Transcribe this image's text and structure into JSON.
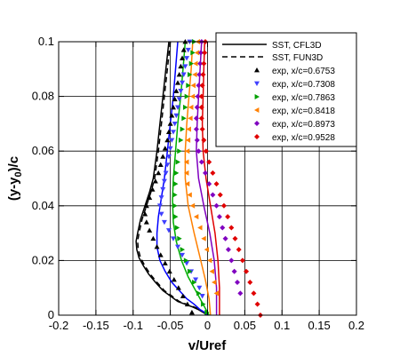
{
  "chart_data": {
    "type": "scatter",
    "title": "",
    "xlabel": "v/Uref",
    "ylabel_main": "(y-y",
    "ylabel_sub": "0",
    "ylabel_tail": ")/c",
    "xlim": [
      -0.2,
      0.2
    ],
    "ylim": [
      0,
      0.1
    ],
    "x_ticks": [
      -0.2,
      -0.15,
      -0.1,
      -0.05,
      0,
      0.05,
      0.1,
      0.15,
      0.2
    ],
    "x_tick_labels": [
      "-0.2",
      "-0.15",
      "-0.1",
      "-0.05",
      "0",
      "0.05",
      "0.1",
      "0.15",
      "0.2"
    ],
    "y_ticks": [
      0,
      0.02,
      0.04,
      0.06,
      0.08,
      0.1
    ],
    "y_tick_labels": [
      "0",
      "0.02",
      "0.04",
      "0.06",
      "0.08",
      "0.1"
    ],
    "grid": true,
    "legend_position": "top-right",
    "lines": [
      {
        "name": "SST, CFL3D",
        "style": "solid",
        "color": "#000000",
        "x": [
          -0.052,
          -0.056,
          -0.06,
          -0.064,
          -0.068,
          -0.073,
          -0.078,
          -0.084,
          -0.09,
          -0.094,
          -0.096,
          -0.095,
          -0.092,
          -0.086,
          -0.079,
          -0.07,
          -0.06,
          -0.05,
          -0.04,
          -0.03,
          -0.02,
          -0.012,
          -0.006,
          0.0
        ],
        "y": [
          0.1,
          0.09,
          0.08,
          0.07,
          0.06,
          0.05,
          0.045,
          0.04,
          0.035,
          0.03,
          0.027,
          0.024,
          0.021,
          0.018,
          0.015,
          0.012,
          0.009,
          0.007,
          0.005,
          0.004,
          0.003,
          0.002,
          0.001,
          0.0
        ]
      },
      {
        "name": "SST, FUN3D",
        "style": "dashed",
        "color": "#000000",
        "x": [
          -0.05,
          -0.054,
          -0.058,
          -0.062,
          -0.066,
          -0.071,
          -0.076,
          -0.082,
          -0.088,
          -0.092,
          -0.094,
          -0.093,
          -0.09,
          -0.084,
          -0.077,
          -0.068,
          -0.058,
          -0.048,
          -0.038,
          -0.028,
          -0.018,
          -0.01,
          -0.004,
          0.002
        ],
        "y": [
          0.1,
          0.09,
          0.08,
          0.07,
          0.06,
          0.05,
          0.045,
          0.04,
          0.035,
          0.03,
          0.027,
          0.024,
          0.021,
          0.018,
          0.015,
          0.012,
          0.009,
          0.007,
          0.005,
          0.004,
          0.003,
          0.002,
          0.001,
          0.0
        ]
      },
      {
        "name": "",
        "style": "solid",
        "color": "#0000ff",
        "x": [
          -0.04,
          -0.043,
          -0.046,
          -0.05,
          -0.054,
          -0.058,
          -0.062,
          -0.066,
          -0.068,
          -0.068,
          -0.064,
          -0.057,
          -0.048,
          -0.038,
          -0.028,
          -0.018,
          -0.01,
          -0.004,
          0.0
        ],
        "y": [
          0.1,
          0.09,
          0.08,
          0.07,
          0.06,
          0.05,
          0.043,
          0.036,
          0.03,
          0.025,
          0.02,
          0.016,
          0.012,
          0.009,
          0.006,
          0.004,
          0.002,
          0.001,
          0.0
        ]
      },
      {
        "name": "",
        "style": "solid",
        "color": "#00b000",
        "x": [
          -0.03,
          -0.033,
          -0.036,
          -0.04,
          -0.043,
          -0.046,
          -0.047,
          -0.046,
          -0.042,
          -0.035,
          -0.026,
          -0.016,
          -0.008,
          -0.002,
          0.002
        ],
        "y": [
          0.1,
          0.09,
          0.08,
          0.07,
          0.06,
          0.05,
          0.042,
          0.034,
          0.027,
          0.02,
          0.014,
          0.009,
          0.005,
          0.002,
          0.0
        ]
      },
      {
        "name": "",
        "style": "solid",
        "color": "#ff8000",
        "x": [
          -0.02,
          -0.022,
          -0.025,
          -0.028,
          -0.03,
          -0.03,
          -0.026,
          -0.018,
          -0.01,
          -0.003,
          0.002,
          0.004
        ],
        "y": [
          0.1,
          0.09,
          0.08,
          0.07,
          0.06,
          0.05,
          0.04,
          0.03,
          0.021,
          0.013,
          0.006,
          0.0
        ]
      },
      {
        "name": "",
        "style": "solid",
        "color": "#8000c0",
        "x": [
          -0.008,
          -0.01,
          -0.012,
          -0.014,
          -0.015,
          -0.012,
          -0.005,
          0.003,
          0.009,
          0.012,
          0.012
        ],
        "y": [
          0.1,
          0.09,
          0.08,
          0.07,
          0.06,
          0.05,
          0.04,
          0.03,
          0.02,
          0.01,
          0.0
        ]
      },
      {
        "name": "",
        "style": "solid",
        "color": "#e00000",
        "x": [
          -0.004,
          -0.005,
          -0.006,
          -0.007,
          -0.006,
          -0.002,
          0.004,
          0.01,
          0.014,
          0.016,
          0.016
        ],
        "y": [
          0.1,
          0.09,
          0.08,
          0.07,
          0.06,
          0.05,
          0.04,
          0.03,
          0.02,
          0.01,
          0.0
        ]
      }
    ],
    "series": [
      {
        "name": "exp, x/c=0.6753",
        "marker": "triangle-up",
        "color": "#000000",
        "x": [
          -0.03,
          -0.032,
          -0.034,
          -0.036,
          -0.038,
          -0.04,
          -0.042,
          -0.044,
          -0.046,
          -0.048,
          -0.05,
          -0.052,
          -0.054,
          -0.057,
          -0.06,
          -0.063,
          -0.066,
          -0.07,
          -0.074,
          -0.078,
          -0.082,
          -0.084,
          -0.082,
          -0.078,
          -0.073,
          -0.068,
          -0.063,
          -0.057,
          -0.051,
          -0.045,
          -0.039,
          -0.033,
          -0.027,
          -0.021
        ],
        "y": [
          0.1,
          0.097,
          0.094,
          0.091,
          0.088,
          0.085,
          0.082,
          0.079,
          0.076,
          0.073,
          0.07,
          0.067,
          0.064,
          0.061,
          0.058,
          0.055,
          0.052,
          0.049,
          0.046,
          0.043,
          0.04,
          0.037,
          0.034,
          0.031,
          0.028,
          0.025,
          0.022,
          0.019,
          0.016,
          0.013,
          0.01,
          0.007,
          0.004,
          0.001
        ]
      },
      {
        "name": "exp, x/c=0.7308",
        "marker": "triangle-down",
        "color": "#4040ff",
        "x": [
          -0.024,
          -0.026,
          -0.028,
          -0.03,
          -0.032,
          -0.034,
          -0.036,
          -0.038,
          -0.04,
          -0.042,
          -0.044,
          -0.046,
          -0.048,
          -0.05,
          -0.052,
          -0.054,
          -0.056,
          -0.058,
          -0.06,
          -0.062,
          -0.064,
          -0.062,
          -0.058,
          -0.052,
          -0.046,
          -0.04,
          -0.034,
          -0.028,
          -0.022,
          -0.016,
          -0.011,
          -0.007
        ],
        "y": [
          0.1,
          0.097,
          0.094,
          0.091,
          0.088,
          0.085,
          0.082,
          0.079,
          0.076,
          0.073,
          0.07,
          0.067,
          0.064,
          0.061,
          0.058,
          0.055,
          0.052,
          0.049,
          0.046,
          0.043,
          0.04,
          0.037,
          0.034,
          0.031,
          0.028,
          0.025,
          0.022,
          0.019,
          0.016,
          0.013,
          0.01,
          0.007
        ]
      },
      {
        "name": "exp, x/c=0.7863",
        "marker": "triangle-right",
        "color": "#00a000",
        "x": [
          -0.018,
          -0.02,
          -0.022,
          -0.024,
          -0.026,
          -0.028,
          -0.03,
          -0.032,
          -0.034,
          -0.036,
          -0.038,
          -0.04,
          -0.042,
          -0.043,
          -0.044,
          -0.044,
          -0.043,
          -0.041,
          -0.038,
          -0.034,
          -0.029,
          -0.024,
          -0.018,
          -0.012,
          -0.006,
          -0.001
        ],
        "y": [
          0.1,
          0.096,
          0.092,
          0.088,
          0.084,
          0.08,
          0.076,
          0.072,
          0.068,
          0.064,
          0.06,
          0.056,
          0.052,
          0.048,
          0.044,
          0.04,
          0.036,
          0.032,
          0.028,
          0.024,
          0.02,
          0.016,
          0.012,
          0.008,
          0.004,
          0.001
        ]
      },
      {
        "name": "exp, x/c=0.8418",
        "marker": "triangle-left",
        "color": "#ff8000",
        "x": [
          -0.013,
          -0.014,
          -0.016,
          -0.017,
          -0.019,
          -0.02,
          -0.022,
          -0.023,
          -0.025,
          -0.026,
          -0.027,
          -0.028,
          -0.028,
          -0.027,
          -0.024,
          -0.02,
          -0.015,
          -0.01,
          -0.005,
          -0.001,
          0.003,
          0.006,
          0.009,
          0.012
        ],
        "y": [
          0.1,
          0.096,
          0.092,
          0.088,
          0.084,
          0.08,
          0.076,
          0.072,
          0.068,
          0.064,
          0.06,
          0.056,
          0.052,
          0.048,
          0.044,
          0.04,
          0.036,
          0.032,
          0.028,
          0.024,
          0.02,
          0.016,
          0.012,
          0.008
        ]
      },
      {
        "name": "exp, x/c=0.8973",
        "marker": "diamond",
        "color": "#8000c0",
        "x": [
          -0.008,
          -0.009,
          -0.01,
          -0.011,
          -0.012,
          -0.013,
          -0.014,
          -0.015,
          -0.015,
          -0.014,
          -0.012,
          -0.008,
          -0.003,
          0.002,
          0.007,
          0.012,
          0.016,
          0.02,
          0.024,
          0.028,
          0.032,
          0.036,
          0.04,
          0.044
        ],
        "y": [
          0.1,
          0.096,
          0.092,
          0.088,
          0.084,
          0.08,
          0.076,
          0.072,
          0.068,
          0.064,
          0.06,
          0.056,
          0.052,
          0.048,
          0.044,
          0.04,
          0.036,
          0.032,
          0.028,
          0.024,
          0.02,
          0.016,
          0.012,
          0.008
        ]
      },
      {
        "name": "exp, x/c=0.9528",
        "marker": "diamond",
        "color": "#e00000",
        "x": [
          -0.003,
          -0.004,
          -0.005,
          -0.006,
          -0.007,
          -0.008,
          -0.008,
          -0.008,
          -0.007,
          -0.005,
          -0.002,
          0.002,
          0.007,
          0.012,
          0.017,
          0.022,
          0.027,
          0.032,
          0.037,
          0.042,
          0.047,
          0.052,
          0.057,
          0.062,
          0.067,
          0.071
        ],
        "y": [
          0.1,
          0.096,
          0.092,
          0.088,
          0.084,
          0.08,
          0.076,
          0.072,
          0.068,
          0.064,
          0.06,
          0.056,
          0.052,
          0.048,
          0.044,
          0.04,
          0.036,
          0.032,
          0.028,
          0.024,
          0.02,
          0.016,
          0.012,
          0.008,
          0.004,
          0.0
        ]
      }
    ]
  }
}
